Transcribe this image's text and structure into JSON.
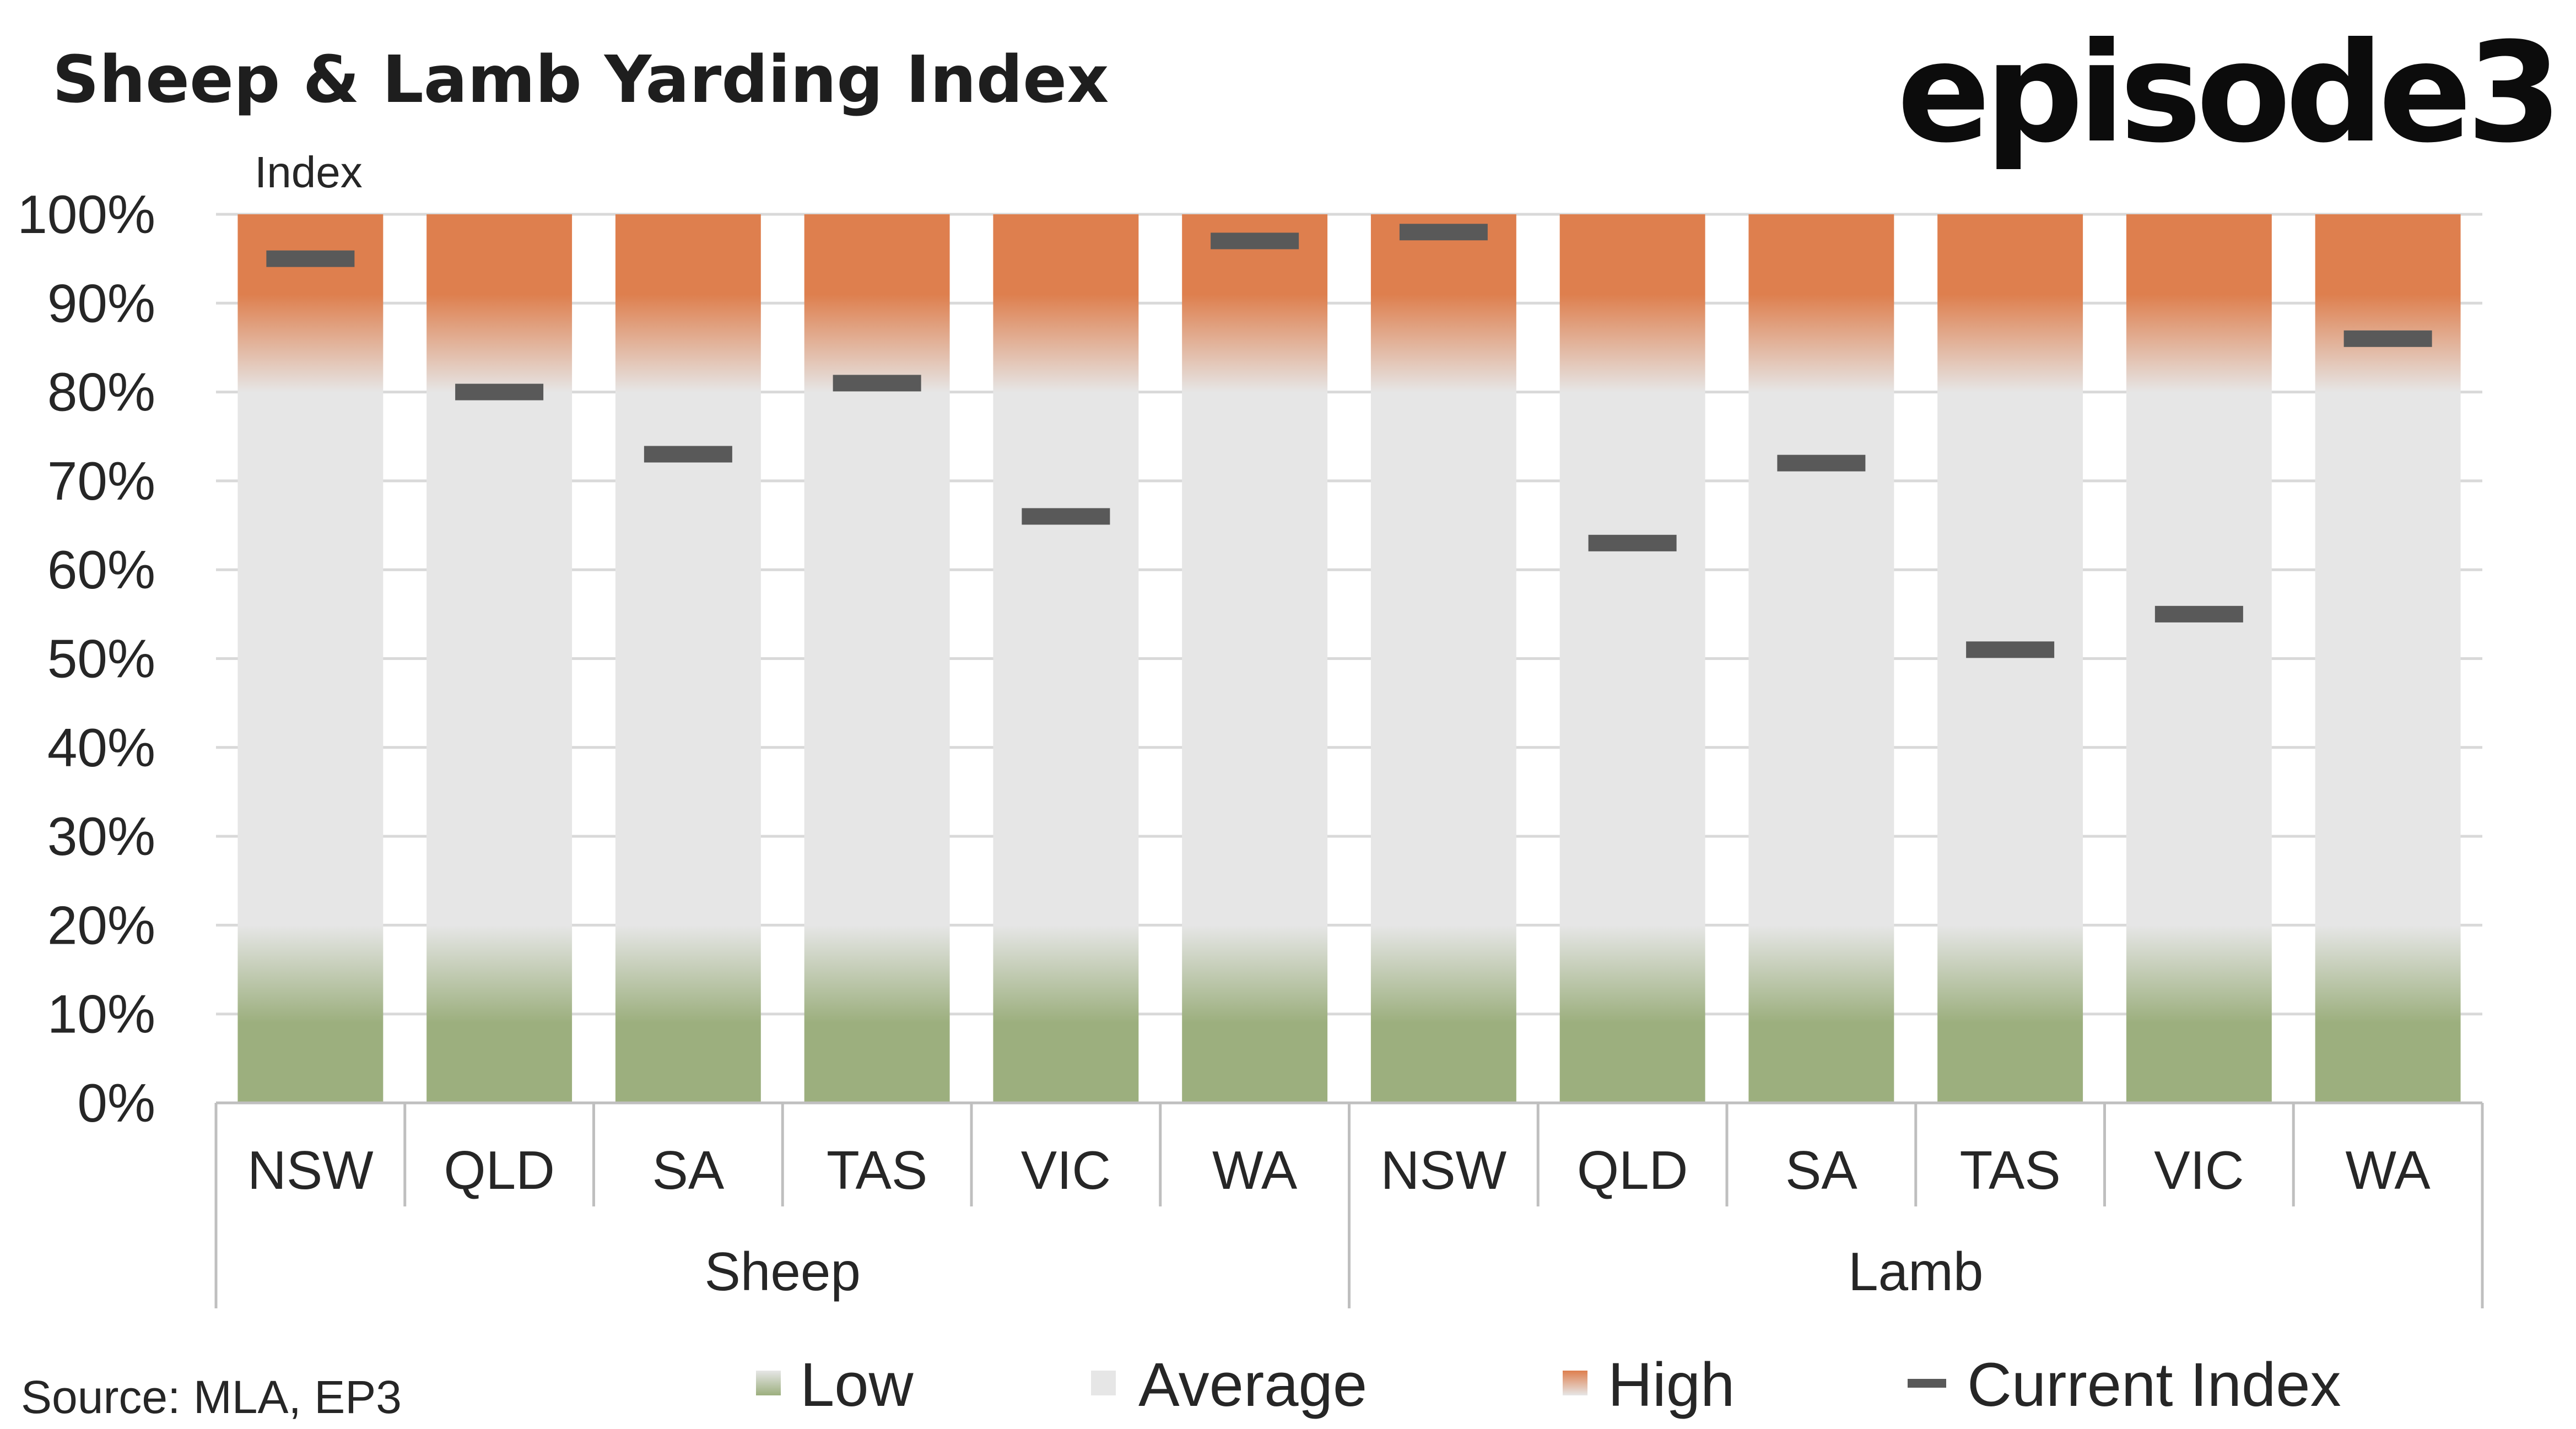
{
  "title": "Sheep & Lamb Yarding Index",
  "brand": "episode3",
  "source": "Source: MLA, EP3",
  "colors": {
    "low": "#9caf7e",
    "average": "#e6e6e6",
    "high": "#de7f4e",
    "marker": "#595959",
    "grid": "#d9d9d9",
    "axis": "#bfbfbf"
  },
  "legend": {
    "low": "Low",
    "average": "Average",
    "high": "High",
    "current": "Current Index"
  },
  "chart_data": {
    "type": "bar",
    "ylabel": "Index",
    "ylim": [
      0,
      100
    ],
    "yticks": [
      0,
      10,
      20,
      30,
      40,
      50,
      60,
      70,
      80,
      90,
      100
    ],
    "ytick_labels": [
      "0%",
      "10%",
      "20%",
      "30%",
      "40%",
      "50%",
      "60%",
      "70%",
      "80%",
      "90%",
      "100%"
    ],
    "groups": [
      {
        "name": "Sheep",
        "categories": [
          "NSW",
          "QLD",
          "SA",
          "TAS",
          "VIC",
          "WA"
        ]
      },
      {
        "name": "Lamb",
        "categories": [
          "NSW",
          "QLD",
          "SA",
          "TAS",
          "VIC",
          "WA"
        ]
      }
    ],
    "categories": [
      "NSW",
      "QLD",
      "SA",
      "TAS",
      "VIC",
      "WA",
      "NSW",
      "QLD",
      "SA",
      "TAS",
      "VIC",
      "WA"
    ],
    "bands": {
      "low": [
        0,
        20
      ],
      "average": [
        20,
        80
      ],
      "high": [
        80,
        100
      ]
    },
    "series": [
      {
        "name": "Low",
        "values": [
          20,
          20,
          20,
          20,
          20,
          20,
          20,
          20,
          20,
          20,
          20,
          20
        ]
      },
      {
        "name": "Average",
        "values": [
          60,
          60,
          60,
          60,
          60,
          60,
          60,
          60,
          60,
          60,
          60,
          60
        ]
      },
      {
        "name": "High",
        "values": [
          20,
          20,
          20,
          20,
          20,
          20,
          20,
          20,
          20,
          20,
          20,
          20
        ]
      },
      {
        "name": "Current Index",
        "values": [
          95,
          80,
          73,
          81,
          66,
          97,
          98,
          63,
          72,
          51,
          55,
          86
        ]
      }
    ],
    "grid": true,
    "legend_position": "bottom"
  }
}
